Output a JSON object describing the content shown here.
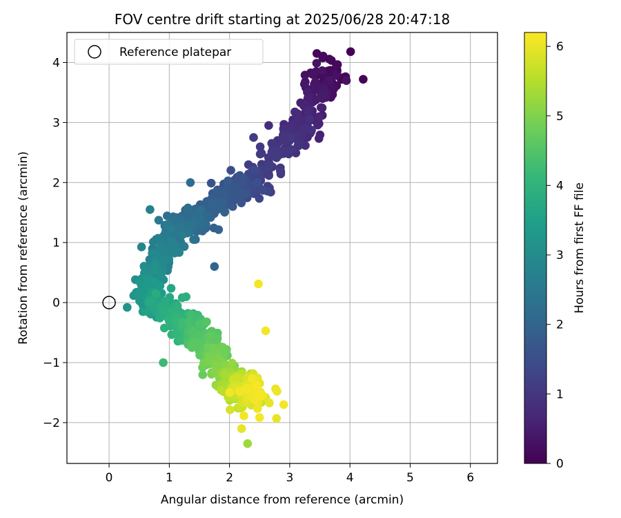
{
  "chart_data": {
    "type": "scatter",
    "title": "FOV centre drift starting at 2025/06/28 20:47:18",
    "xlabel": "Angular distance from reference (arcmin)",
    "ylabel": "Rotation from reference (arcmin)",
    "xlim": [
      -0.7,
      6.45
    ],
    "ylim": [
      -2.68,
      4.5
    ],
    "xticks": [
      0,
      1,
      2,
      3,
      4,
      5,
      6
    ],
    "yticks": [
      -2,
      -1,
      0,
      1,
      2,
      3,
      4
    ],
    "grid": true,
    "legend": {
      "position": "top-left",
      "entries": [
        "Reference platepar"
      ]
    },
    "reference_point": {
      "x": 0,
      "y": 0
    },
    "colorbar": {
      "label": "Hours from first FF file",
      "min": 0,
      "max": 6.2,
      "ticks": [
        0,
        1,
        2,
        3,
        4,
        5,
        6
      ],
      "colormap": [
        "#440154",
        "#482878",
        "#3e4989",
        "#31688e",
        "#26828e",
        "#1f9e89",
        "#35b779",
        "#6ece58",
        "#b5de2b",
        "#fde725"
      ]
    },
    "trend": [
      {
        "t": 0.0,
        "x": 3.75,
        "y": 3.9,
        "sx": 0.22,
        "sy": 0.28
      },
      {
        "t": 0.3,
        "x": 3.5,
        "y": 3.6,
        "sx": 0.25,
        "sy": 0.28
      },
      {
        "t": 0.6,
        "x": 3.3,
        "y": 3.05,
        "sx": 0.25,
        "sy": 0.3
      },
      {
        "t": 0.9,
        "x": 3.0,
        "y": 2.75,
        "sx": 0.25,
        "sy": 0.25
      },
      {
        "t": 1.2,
        "x": 2.45,
        "y": 2.0,
        "sx": 0.28,
        "sy": 0.3
      },
      {
        "t": 1.6,
        "x": 2.05,
        "y": 1.85,
        "sx": 0.25,
        "sy": 0.25
      },
      {
        "t": 2.0,
        "x": 1.55,
        "y": 1.45,
        "sx": 0.28,
        "sy": 0.28
      },
      {
        "t": 2.4,
        "x": 1.1,
        "y": 1.2,
        "sx": 0.25,
        "sy": 0.25
      },
      {
        "t": 2.8,
        "x": 0.8,
        "y": 0.7,
        "sx": 0.22,
        "sy": 0.25
      },
      {
        "t": 3.2,
        "x": 0.6,
        "y": 0.15,
        "sx": 0.22,
        "sy": 0.25
      },
      {
        "t": 3.6,
        "x": 0.85,
        "y": -0.05,
        "sx": 0.22,
        "sy": 0.25
      },
      {
        "t": 4.0,
        "x": 1.2,
        "y": -0.3,
        "sx": 0.22,
        "sy": 0.25
      },
      {
        "t": 4.4,
        "x": 1.5,
        "y": -0.55,
        "sx": 0.22,
        "sy": 0.25
      },
      {
        "t": 4.8,
        "x": 1.8,
        "y": -0.9,
        "sx": 0.22,
        "sy": 0.25
      },
      {
        "t": 5.2,
        "x": 2.0,
        "y": -1.3,
        "sx": 0.22,
        "sy": 0.25
      },
      {
        "t": 5.6,
        "x": 2.2,
        "y": -1.5,
        "sx": 0.25,
        "sy": 0.25
      },
      {
        "t": 6.0,
        "x": 2.4,
        "y": -1.5,
        "sx": 0.25,
        "sy": 0.28
      }
    ],
    "outliers": [
      {
        "x": 2.48,
        "y": 0.31,
        "t": 6.1
      },
      {
        "x": 2.6,
        "y": -0.47,
        "t": 6.1
      },
      {
        "x": 2.0,
        "y": -1.5,
        "t": 6.1
      },
      {
        "x": 1.75,
        "y": 0.6,
        "t": 2.0
      },
      {
        "x": 0.9,
        "y": -1.0,
        "t": 4.2
      },
      {
        "x": 2.3,
        "y": -2.35,
        "t": 5.3
      },
      {
        "x": 2.2,
        "y": -2.1,
        "t": 6.0
      },
      {
        "x": 2.78,
        "y": -1.93,
        "t": 6.0
      },
      {
        "x": 2.9,
        "y": -1.7,
        "t": 6.1
      },
      {
        "x": 4.22,
        "y": 3.72,
        "t": 0.05
      },
      {
        "x": 4.01,
        "y": 4.18,
        "t": 0.0
      },
      {
        "x": 3.45,
        "y": 4.15,
        "t": 0.1
      },
      {
        "x": 2.4,
        "y": 2.75,
        "t": 1.1
      },
      {
        "x": 2.65,
        "y": 2.95,
        "t": 0.8
      },
      {
        "x": 0.3,
        "y": -0.08,
        "t": 3.2
      },
      {
        "x": 0.68,
        "y": 1.55,
        "t": 2.7
      },
      {
        "x": 1.35,
        "y": 2.0,
        "t": 2.2
      }
    ]
  }
}
